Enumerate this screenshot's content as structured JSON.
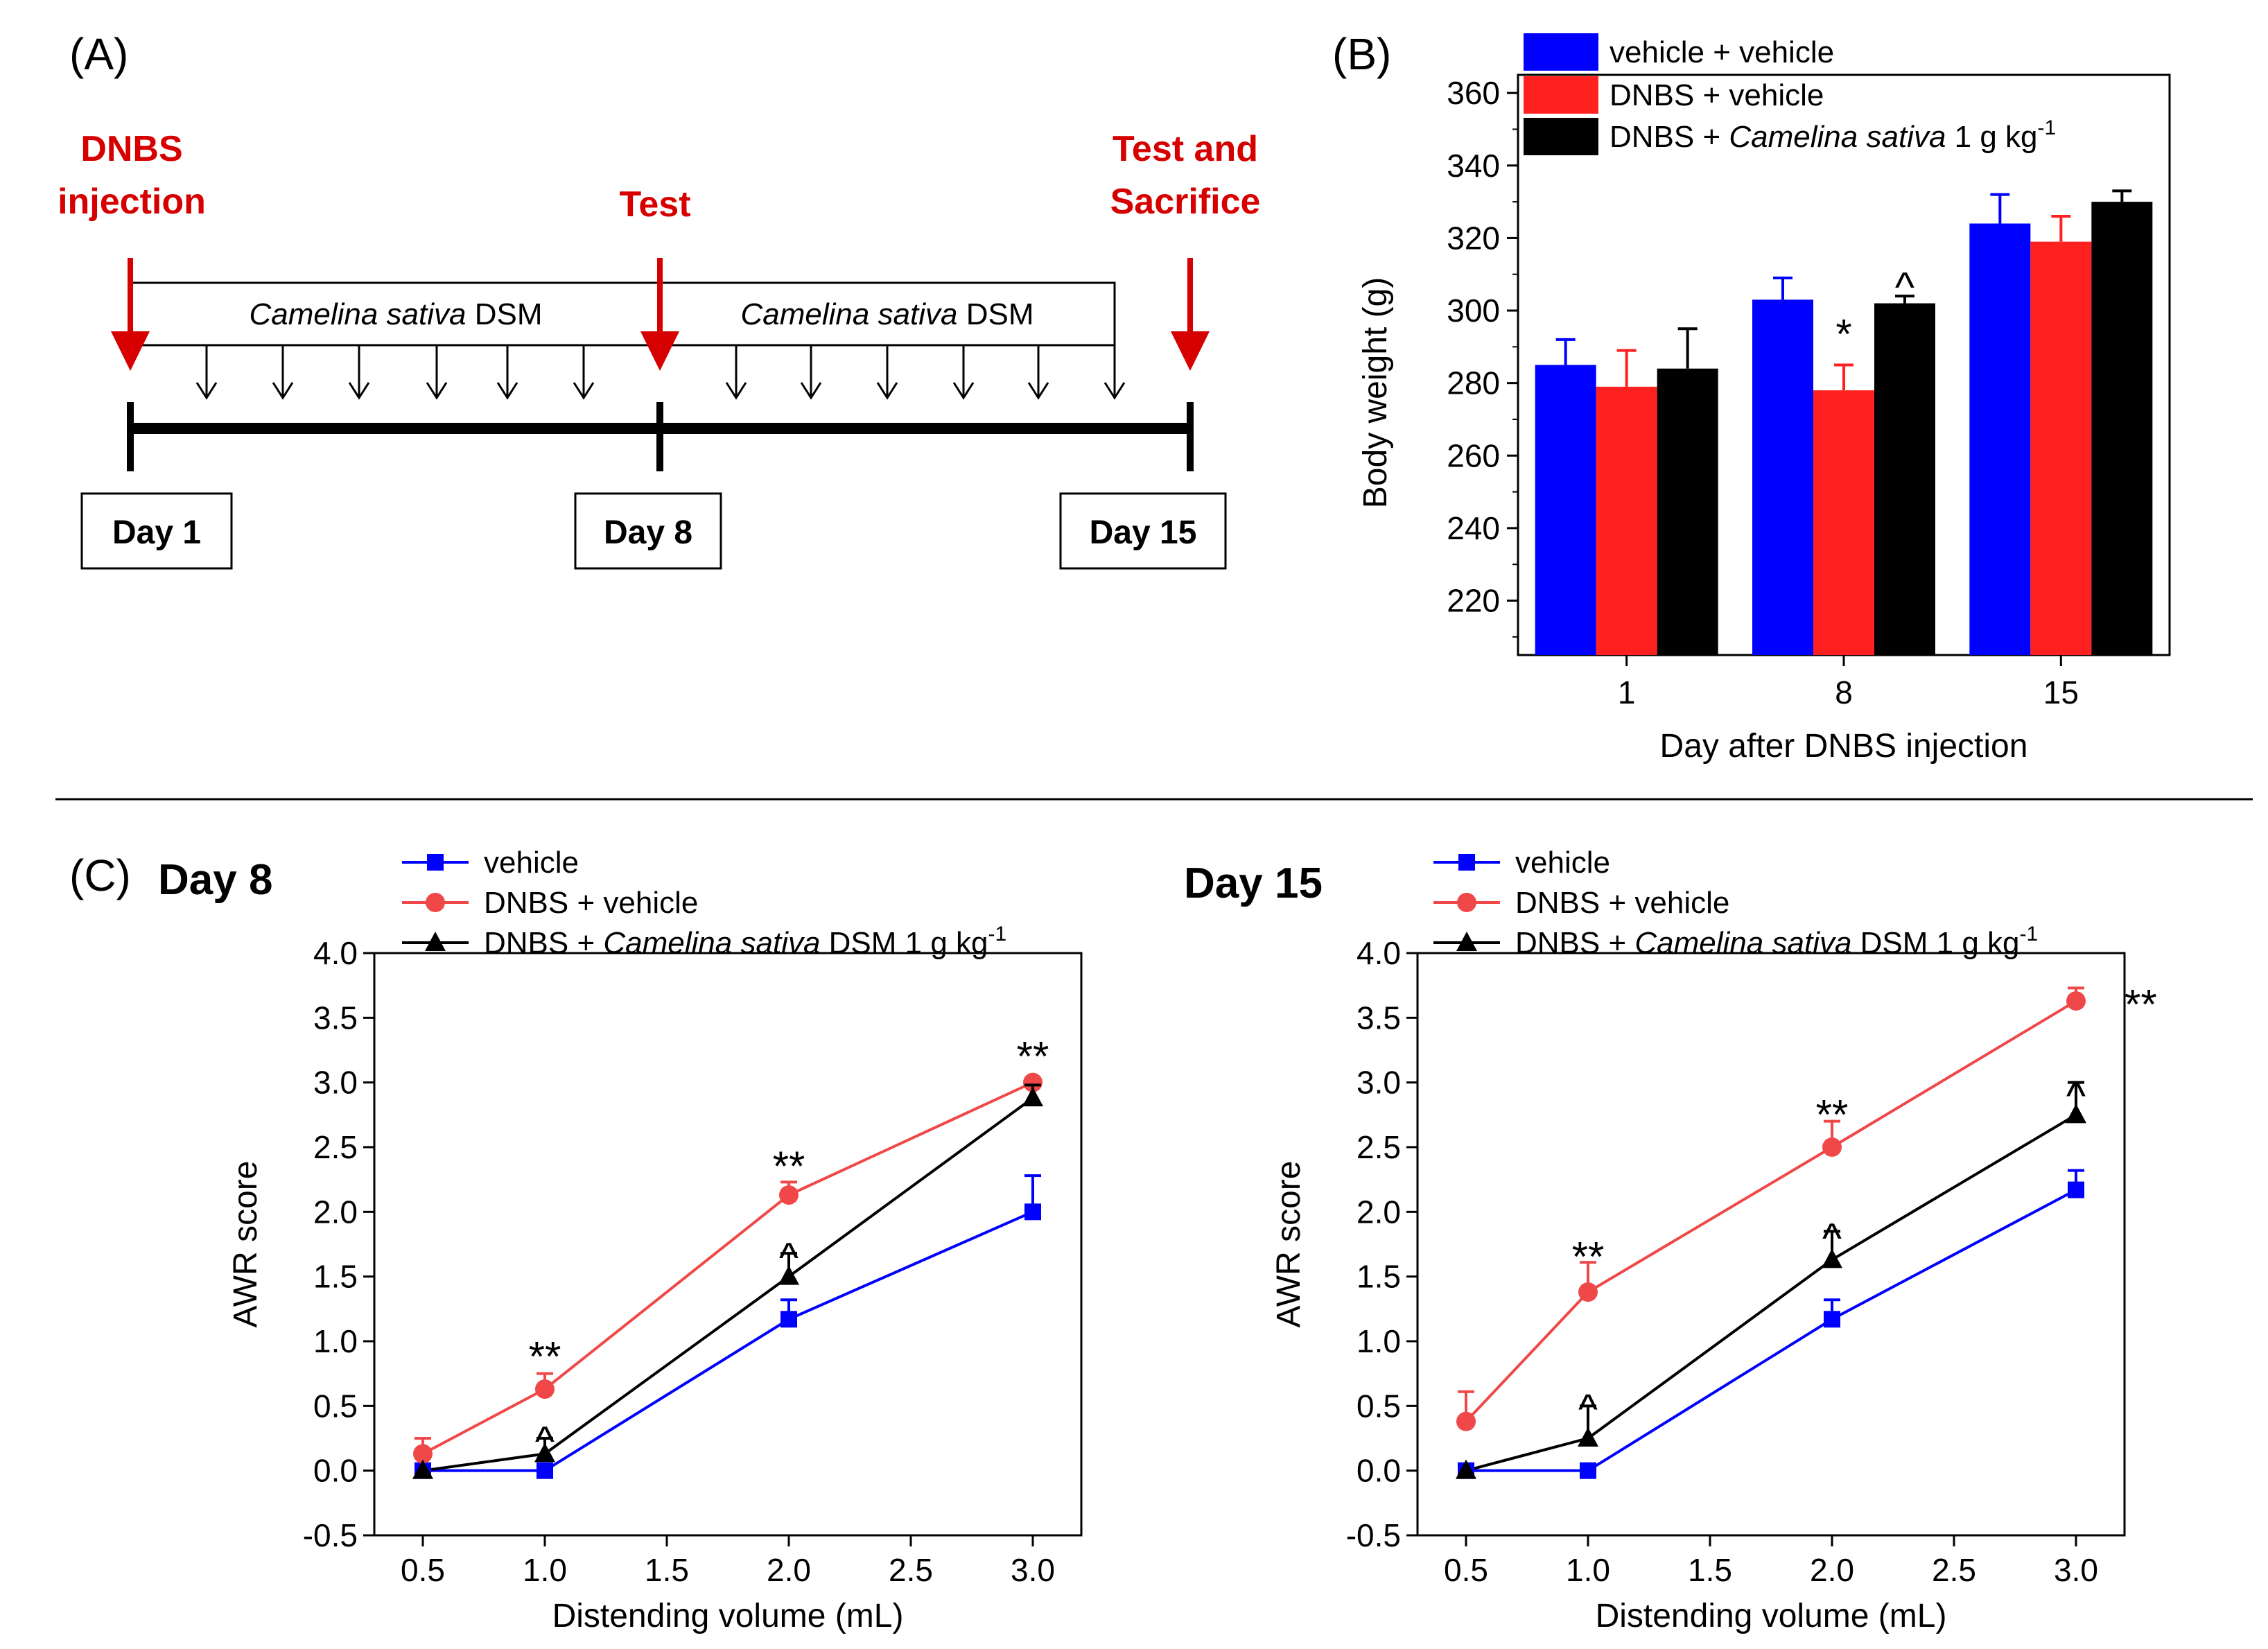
{
  "panel_labels": {
    "a": "(A)",
    "b": "(B)",
    "c": "(C)"
  },
  "colors": {
    "blue": "#0000ff",
    "red": "#ff2020",
    "black": "#000000",
    "line_red": "#f04848",
    "annotation_red": "#d60000"
  },
  "timeline": {
    "events": [
      {
        "line1": "DNBS",
        "line2": "injection"
      },
      {
        "line1": "Test",
        "line2": ""
      },
      {
        "line1": "Test and",
        "line2": "Sacrifice"
      }
    ],
    "treatment_italic": "Camelina sativa",
    "treatment_suffix": "DSM",
    "days": [
      "Day 1",
      "Day 8",
      "Day 15"
    ]
  },
  "chart_data": [
    {
      "id": "B",
      "type": "bar",
      "xlabel": "Day after DNBS injection",
      "ylabel": "Body weight (g)",
      "ylim": [
        205,
        365
      ],
      "yticks": [
        220,
        240,
        260,
        280,
        300,
        320,
        340,
        360
      ],
      "categories": [
        "1",
        "8",
        "15"
      ],
      "legend": [
        {
          "text": "vehicle + vehicle",
          "italic": "",
          "suffix": ""
        },
        {
          "text": "DNBS + vehicle",
          "italic": "",
          "suffix": ""
        },
        {
          "text": "DNBS + ",
          "italic": "Camelina sativa",
          "suffix": " 1 g kg",
          "sup": "-1"
        }
      ],
      "series": [
        {
          "name": "vehicle + vehicle",
          "color": "#0000ff",
          "values": [
            285,
            303,
            324
          ],
          "errors": [
            7,
            6,
            8
          ]
        },
        {
          "name": "DNBS + vehicle",
          "color": "#ff2020",
          "values": [
            279,
            278,
            319
          ],
          "errors": [
            10,
            7,
            7
          ]
        },
        {
          "name": "DNBS + Camelina sativa 1 g kg-1",
          "color": "#000000",
          "values": [
            284,
            302,
            330
          ],
          "errors": [
            11,
            2,
            3
          ]
        }
      ],
      "annotations": [
        {
          "category": "8",
          "series": 1,
          "text": "*"
        },
        {
          "category": "8",
          "series": 2,
          "text": "^"
        }
      ]
    },
    {
      "id": "C-day8",
      "type": "line",
      "title": "Day 8",
      "xlabel": "Distending volume (mL)",
      "ylabel": "AWR score",
      "xlim": [
        0.5,
        3.0
      ],
      "ylim": [
        -0.5,
        4.0
      ],
      "xticks": [
        "0.5",
        "1.0",
        "1.5",
        "2.0",
        "2.5",
        "3.0"
      ],
      "yticks": [
        "-0.5",
        "0.0",
        "0.5",
        "1.0",
        "1.5",
        "2.0",
        "2.5",
        "3.0",
        "3.5",
        "4.0"
      ],
      "x": [
        0.5,
        1.0,
        2.0,
        3.0
      ],
      "legend": [
        {
          "text": "vehicle",
          "italic": "",
          "suffix": ""
        },
        {
          "text": "DNBS + vehicle",
          "italic": "",
          "suffix": ""
        },
        {
          "text": "DNBS + ",
          "italic": "Camelina sativa",
          "suffix": " DSM 1 g kg",
          "sup": "-1"
        }
      ],
      "series": [
        {
          "name": "vehicle",
          "color": "#0000ff",
          "marker": "square",
          "values": [
            0.0,
            0.0,
            1.17,
            2.0
          ],
          "errors": [
            0,
            0,
            0.15,
            0.28
          ]
        },
        {
          "name": "DNBS + vehicle",
          "color": "#f04848",
          "marker": "circle",
          "values": [
            0.13,
            0.63,
            2.13,
            3.0
          ],
          "errors": [
            0.12,
            0.12,
            0.1,
            0
          ]
        },
        {
          "name": "DNBS + Camelina sativa DSM 1 g kg-1",
          "color": "#000000",
          "marker": "triangle",
          "values": [
            0.0,
            0.13,
            1.5,
            2.88
          ],
          "errors": [
            0,
            0.12,
            0.18,
            0.1
          ]
        }
      ],
      "annotations": [
        {
          "x": 1.0,
          "y": 0.88,
          "text": "**"
        },
        {
          "x": 1.0,
          "y": 0.33,
          "text": "^"
        },
        {
          "x": 2.0,
          "y": 2.35,
          "text": "**"
        },
        {
          "x": 2.0,
          "y": 1.75,
          "text": "^"
        },
        {
          "x": 3.0,
          "y": 3.2,
          "text": "**"
        }
      ]
    },
    {
      "id": "C-day15",
      "type": "line",
      "title": "Day 15",
      "xlabel": "Distending volume (mL)",
      "ylabel": "AWR score",
      "xlim": [
        0.5,
        3.0
      ],
      "ylim": [
        -0.5,
        4.0
      ],
      "xticks": [
        "0.5",
        "1.0",
        "1.5",
        "2.0",
        "2.5",
        "3.0"
      ],
      "yticks": [
        "-0.5",
        "0.0",
        "0.5",
        "1.0",
        "1.5",
        "2.0",
        "2.5",
        "3.0",
        "3.5",
        "4.0"
      ],
      "x": [
        0.5,
        1.0,
        2.0,
        3.0
      ],
      "legend": [
        {
          "text": "vehicle",
          "italic": "",
          "suffix": ""
        },
        {
          "text": "DNBS + vehicle",
          "italic": "",
          "suffix": ""
        },
        {
          "text": "DNBS + ",
          "italic": "Camelina sativa",
          "suffix": " DSM 1 g kg",
          "sup": "-1"
        }
      ],
      "series": [
        {
          "name": "vehicle",
          "color": "#0000ff",
          "marker": "square",
          "values": [
            0.0,
            0.0,
            1.17,
            2.17
          ],
          "errors": [
            0,
            0,
            0.15,
            0.15
          ]
        },
        {
          "name": "DNBS + vehicle",
          "color": "#f04848",
          "marker": "circle",
          "values": [
            0.38,
            1.38,
            2.5,
            3.63
          ],
          "errors": [
            0.23,
            0.23,
            0.2,
            0.1
          ]
        },
        {
          "name": "DNBS + Camelina sativa DSM 1 g kg-1",
          "color": "#000000",
          "marker": "triangle",
          "values": [
            0.0,
            0.25,
            1.63,
            2.75
          ],
          "errors": [
            0,
            0.25,
            0.22,
            0.25
          ]
        }
      ],
      "annotations": [
        {
          "x": 1.0,
          "y": 1.65,
          "text": "**"
        },
        {
          "x": 1.0,
          "y": 0.58,
          "text": "^"
        },
        {
          "x": 2.0,
          "y": 2.75,
          "text": "**"
        },
        {
          "x": 2.0,
          "y": 1.9,
          "text": "^"
        },
        {
          "x": 3.0,
          "y": 3.0,
          "text": "^"
        },
        {
          "x": 3.0,
          "y": 3.6,
          "text": "**",
          "side": "right"
        }
      ]
    }
  ]
}
